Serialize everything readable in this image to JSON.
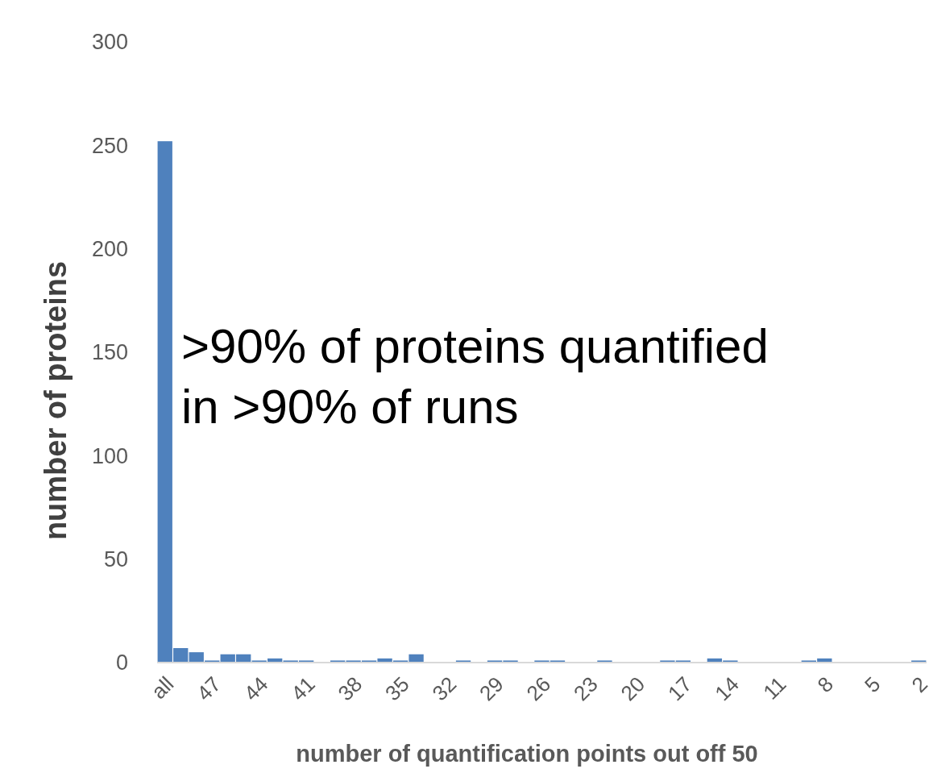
{
  "chart_data": {
    "type": "bar",
    "xlabel": "number of quantification points out off 50",
    "ylabel": "number of proteins",
    "categories": [
      "all",
      null,
      null,
      "47",
      null,
      null,
      "44",
      null,
      null,
      "41",
      null,
      null,
      "38",
      null,
      null,
      "35",
      null,
      null,
      "32",
      null,
      null,
      "29",
      null,
      null,
      "26",
      null,
      null,
      "23",
      null,
      null,
      "20",
      null,
      null,
      "17",
      null,
      null,
      "14",
      null,
      null,
      "11",
      null,
      null,
      "8",
      null,
      null,
      "5",
      null,
      null,
      "2"
    ],
    "values": [
      252,
      7,
      5,
      1,
      4,
      4,
      1,
      2,
      1,
      1,
      0,
      1,
      1,
      1,
      2,
      1,
      4,
      0,
      0,
      1,
      0,
      1,
      1,
      0,
      1,
      1,
      0,
      0,
      1,
      0,
      0,
      0,
      1,
      1,
      0,
      2,
      1,
      0,
      0,
      0,
      0,
      1,
      2,
      0,
      0,
      0,
      0,
      0,
      1
    ],
    "color": "#4f81bd",
    "ylim": [
      0,
      300
    ],
    "yticks": [
      0,
      50,
      100,
      150,
      200,
      250,
      300
    ],
    "grid": false,
    "annotations": [
      ">90% of proteins quantified",
      "in >90% of runs"
    ]
  }
}
